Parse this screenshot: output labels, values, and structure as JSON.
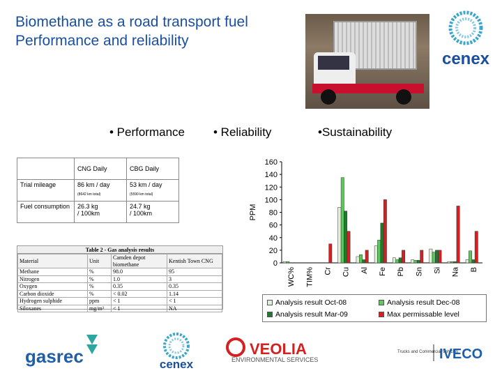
{
  "title": {
    "line1": "Biomethane as a road transport fuel",
    "line2": "Performance and reliability"
  },
  "bullets": [
    "• Performance",
    "• Reliability",
    "•Sustainability"
  ],
  "logos": {
    "cenex": "cenex",
    "gasrec": "gasrec",
    "veolia": "VEOLIA",
    "veolia_sub": "ENVIRONMENTAL SERVICES",
    "trucks": "Trucks and Commercial Vehicles",
    "iveco": "IVECO"
  },
  "perf_table": {
    "headers": [
      "",
      "CNG Daily",
      "CBG Daily"
    ],
    "rows": [
      {
        "label": "Trial mileage",
        "cng": "86 km / day",
        "cng_note": "(8642 km total)",
        "cbg": "53 km / day",
        "cbg_note": "(5590 km total)"
      },
      {
        "label": "Fuel consumption",
        "cng": "26.3 kg",
        "cng_2": "/ 100km",
        "cbg": "24.7 kg",
        "cbg_2": "/ 100km"
      }
    ]
  },
  "gas_table": {
    "caption": "Table 2 - Gas analysis results",
    "headers": [
      "Material",
      "Unit",
      "Camden depot biomethane",
      "Kentish Town CNG"
    ],
    "rows": [
      [
        "Methane",
        "%",
        "98.0",
        "95"
      ],
      [
        "Nitrogen",
        "%",
        "1.0",
        "3"
      ],
      [
        "Oxygen",
        "%",
        "0.35",
        "0.35"
      ],
      [
        "Carbon dioxide",
        "%",
        "< 0.02",
        "1.14"
      ],
      [
        "Hydrogen sulphide",
        "ppm",
        "< 1",
        "< 1"
      ],
      [
        "Siloxanes",
        "mg/m³",
        "< 1",
        "NA"
      ]
    ]
  },
  "chart_data": {
    "type": "bar",
    "ylabel": "PPM",
    "ylim": [
      0,
      160
    ],
    "yticks": [
      0,
      20,
      40,
      60,
      80,
      100,
      120,
      140,
      160
    ],
    "categories": [
      "WC%",
      "TIM%",
      "Cr",
      "Cu",
      "Al",
      "Fe",
      "Pb",
      "Sn",
      "Si",
      "Na",
      "B"
    ],
    "series": [
      {
        "name": "Analysis result Oct-08",
        "color": "#dff0d8",
        "values": [
          2,
          0,
          0,
          88,
          10,
          27,
          8,
          5,
          22,
          2,
          5
        ]
      },
      {
        "name": "Analysis result Dec-08",
        "color": "#5cc85c",
        "values": [
          2,
          0,
          0,
          135,
          13,
          36,
          5,
          4,
          17,
          2,
          19
        ]
      },
      {
        "name": "Analysis result Mar-09",
        "color": "#1f7a30",
        "values": [
          0,
          0,
          0,
          82,
          5,
          63,
          8,
          4,
          20,
          2,
          5
        ]
      },
      {
        "name": "Max permissable level",
        "color": "#d42020",
        "values": [
          0,
          0,
          30,
          50,
          20,
          100,
          20,
          20,
          20,
          90,
          50
        ]
      }
    ]
  }
}
